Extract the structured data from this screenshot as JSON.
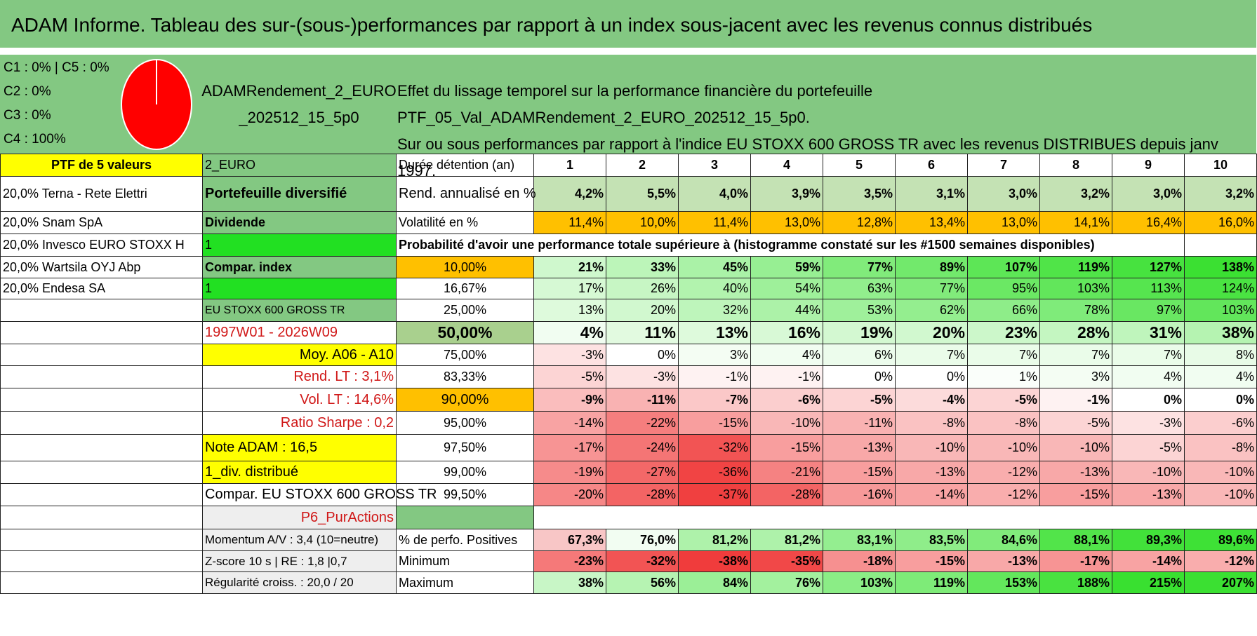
{
  "title": "ADAM Informe. Tableau des sur-(sous-)performances par rapport à un index sous-jacent avec les revenus connus distribués",
  "pie_panel": {
    "legend": [
      "C1 : 0% | C5 : 0%",
      "C2 : 0%",
      "C3 : 0%",
      "C4 : 100%"
    ],
    "pie_color": "#ff0000",
    "pie_share_c4": 1.0
  },
  "header": {
    "name_line1": "ADAMRendement_2_EURO",
    "name_line2": "_202512_15_5p0",
    "desc_line1": "Effet du lissage temporel sur la performance financière du portefeuille PTF_05_Val_ADAMRendement_2_EURO_202512_15_5p0.",
    "desc_line2": "Sur ou sous performances par rapport à l'indice EU STOXX 600 GROSS TR avec les revenus DISTRIBUES depuis janv 1997."
  },
  "side_col0": {
    "ptf_label": "PTF de 5 valeurs",
    "holdings": [
      "20,0% Terna - Rete Elettri",
      "20,0% Snam SpA",
      "20,0% Invesco EURO STOXX H",
      "20,0% Wartsila OYJ Abp",
      "20,0% Endesa SA"
    ]
  },
  "side_col1": {
    "currency": "2_EURO",
    "portfolio_type": "Portefeuille diversifié",
    "dividend_label": "Dividende",
    "dividend_value": "1",
    "compar_label": "Compar. index",
    "compar_value": "1",
    "index_name": "EU STOXX 600 GROSS TR",
    "period": "1997W01 - 2026W09",
    "moy": "Moy. A06 - A10",
    "rend_lt": "Rend. LT : 3,1%",
    "vol_lt": "Vol. LT : 14,6%",
    "sharpe": "Ratio Sharpe : 0,2",
    "note": "Note ADAM : 16,5",
    "div_distrib": "1_div. distribué",
    "compar_full": "Compar. EU STOXX 600 GROSS TR",
    "strategy": "P6_PurActions",
    "momentum": "Momentum A/V : 3,4 (10=neutre)",
    "zscore": "Z-score 10 s | RE : 1,8 |0,7",
    "regularite": "Régularité croiss. : 20,0 / 20"
  },
  "table": {
    "duration_label": "Durée détention (an)",
    "years": [
      "1",
      "2",
      "3",
      "4",
      "5",
      "6",
      "7",
      "8",
      "9",
      "10"
    ],
    "rend_label": "Rend. annualisé en %",
    "rend": [
      "4,2%",
      "5,5%",
      "4,0%",
      "3,9%",
      "3,5%",
      "3,1%",
      "3,0%",
      "3,2%",
      "3,0%",
      "3,2%"
    ],
    "vol_label": "Volatilité en %",
    "vol": [
      "11,4%",
      "10,0%",
      "11,4%",
      "13,0%",
      "12,8%",
      "13,4%",
      "13,0%",
      "14,1%",
      "16,4%",
      "16,0%"
    ],
    "prob_label": "Probabilité d'avoir une performance totale supérieure à (histogramme constaté sur les #1500 semaines disponibles)",
    "quantiles": [
      {
        "p": "10,00%",
        "v": [
          "21%",
          "33%",
          "45%",
          "59%",
          "77%",
          "89%",
          "107%",
          "119%",
          "127%",
          "138%"
        ],
        "n": [
          21,
          33,
          45,
          59,
          77,
          89,
          107,
          119,
          127,
          138
        ]
      },
      {
        "p": "16,67%",
        "v": [
          "17%",
          "26%",
          "40%",
          "54%",
          "63%",
          "77%",
          "95%",
          "103%",
          "113%",
          "124%"
        ],
        "n": [
          17,
          26,
          40,
          54,
          63,
          77,
          95,
          103,
          113,
          124
        ]
      },
      {
        "p": "25,00%",
        "v": [
          "13%",
          "20%",
          "32%",
          "44%",
          "53%",
          "62%",
          "66%",
          "78%",
          "97%",
          "103%"
        ],
        "n": [
          13,
          20,
          32,
          44,
          53,
          62,
          66,
          78,
          97,
          103
        ]
      },
      {
        "p": "50,00%",
        "v": [
          "4%",
          "11%",
          "13%",
          "16%",
          "19%",
          "20%",
          "23%",
          "28%",
          "31%",
          "38%"
        ],
        "n": [
          4,
          11,
          13,
          16,
          19,
          20,
          23,
          28,
          31,
          38
        ]
      },
      {
        "p": "75,00%",
        "v": [
          "-3%",
          "0%",
          "3%",
          "4%",
          "6%",
          "7%",
          "7%",
          "7%",
          "7%",
          "8%"
        ],
        "n": [
          -3,
          0,
          3,
          4,
          6,
          7,
          7,
          7,
          7,
          8
        ]
      },
      {
        "p": "83,33%",
        "v": [
          "-5%",
          "-3%",
          "-1%",
          "-1%",
          "0%",
          "0%",
          "1%",
          "3%",
          "4%",
          "4%"
        ],
        "n": [
          -5,
          -3,
          -1,
          -1,
          0,
          0,
          1,
          3,
          4,
          4
        ]
      },
      {
        "p": "90,00%",
        "v": [
          "-9%",
          "-11%",
          "-7%",
          "-6%",
          "-5%",
          "-4%",
          "-5%",
          "-1%",
          "0%",
          "0%"
        ],
        "n": [
          -9,
          -11,
          -7,
          -6,
          -5,
          -4,
          -5,
          -1,
          0,
          0
        ]
      },
      {
        "p": "95,00%",
        "v": [
          "-14%",
          "-22%",
          "-15%",
          "-10%",
          "-11%",
          "-8%",
          "-8%",
          "-5%",
          "-3%",
          "-6%"
        ],
        "n": [
          -14,
          -22,
          -15,
          -10,
          -11,
          -8,
          -8,
          -5,
          -3,
          -6
        ]
      },
      {
        "p": "97,50%",
        "v": [
          "-17%",
          "-24%",
          "-32%",
          "-15%",
          "-13%",
          "-10%",
          "-10%",
          "-10%",
          "-5%",
          "-8%"
        ],
        "n": [
          -17,
          -24,
          -32,
          -15,
          -13,
          -10,
          -10,
          -10,
          -5,
          -8
        ]
      },
      {
        "p": "99,00%",
        "v": [
          "-19%",
          "-27%",
          "-36%",
          "-21%",
          "-15%",
          "-13%",
          "-12%",
          "-13%",
          "-10%",
          "-10%"
        ],
        "n": [
          -19,
          -27,
          -36,
          -21,
          -15,
          -13,
          -12,
          -13,
          -10,
          -10
        ]
      },
      {
        "p": "99,50%",
        "v": [
          "-20%",
          "-28%",
          "-37%",
          "-28%",
          "-16%",
          "-14%",
          "-12%",
          "-15%",
          "-13%",
          "-10%"
        ],
        "n": [
          -20,
          -28,
          -37,
          -28,
          -16,
          -14,
          -12,
          -15,
          -13,
          -10
        ]
      }
    ],
    "pos_label": "% de perfo. Positives",
    "pos": [
      "67,3%",
      "76,0%",
      "81,2%",
      "81,2%",
      "83,1%",
      "83,5%",
      "84,6%",
      "88,1%",
      "89,3%",
      "89,6%"
    ],
    "pos_n": [
      67.3,
      76.0,
      81.2,
      81.2,
      83.1,
      83.5,
      84.6,
      88.1,
      89.3,
      89.6
    ],
    "min_label": "Minimum",
    "min": [
      "-23%",
      "-32%",
      "-38%",
      "-35%",
      "-18%",
      "-15%",
      "-13%",
      "-17%",
      "-14%",
      "-12%"
    ],
    "min_n": [
      -23,
      -32,
      -38,
      -35,
      -18,
      -15,
      -13,
      -17,
      -14,
      -12
    ],
    "max_label": "Maximum",
    "max": [
      "38%",
      "56%",
      "84%",
      "76%",
      "103%",
      "119%",
      "153%",
      "188%",
      "215%",
      "207%"
    ],
    "max_n": [
      38,
      56,
      84,
      76,
      103,
      119,
      153,
      188,
      215,
      207
    ]
  }
}
